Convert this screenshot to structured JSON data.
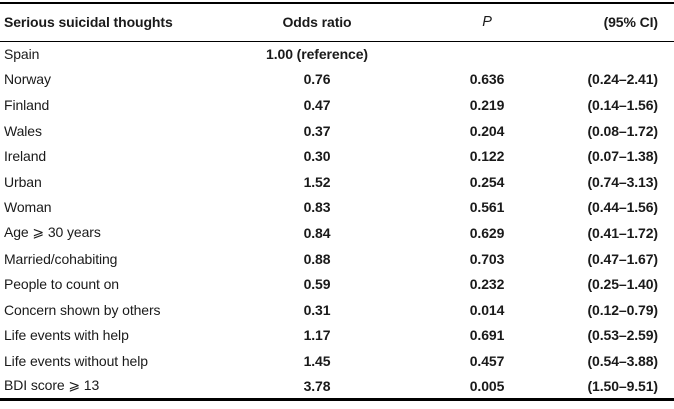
{
  "page": {
    "background_color": "#ffffff",
    "text_color": "#1a1a1a",
    "rule_color": "#000000"
  },
  "table": {
    "columns": [
      {
        "key": "label",
        "header": "Serious suicidal thoughts"
      },
      {
        "key": "odds_ratio",
        "header": "Odds ratio"
      },
      {
        "key": "p",
        "header": "P"
      },
      {
        "key": "ci",
        "header": "(95% CI)"
      }
    ],
    "rows": [
      {
        "label": "Spain",
        "odds_ratio": "1.00 (reference)",
        "p": "",
        "ci": ""
      },
      {
        "label": "Norway",
        "odds_ratio": "0.76",
        "p": "0.636",
        "ci": "(0.24–2.41)"
      },
      {
        "label": "Finland",
        "odds_ratio": "0.47",
        "p": "0.219",
        "ci": "(0.14–1.56)"
      },
      {
        "label": "Wales",
        "odds_ratio": "0.37",
        "p": "0.204",
        "ci": "(0.08–1.72)"
      },
      {
        "label": "Ireland",
        "odds_ratio": "0.30",
        "p": "0.122",
        "ci": "(0.07–1.38)"
      },
      {
        "label": "Urban",
        "odds_ratio": "1.52",
        "p": "0.254",
        "ci": "(0.74–3.13)"
      },
      {
        "label": "Woman",
        "odds_ratio": "0.83",
        "p": "0.561",
        "ci": "(0.44–1.56)"
      },
      {
        "label": "Age ⩾ 30 years",
        "odds_ratio": "0.84",
        "p": "0.629",
        "ci": "(0.41–1.72)"
      },
      {
        "label": "Married/cohabiting",
        "odds_ratio": "0.88",
        "p": "0.703",
        "ci": "(0.47–1.67)"
      },
      {
        "label": "People to count on",
        "odds_ratio": "0.59",
        "p": "0.232",
        "ci": "(0.25–1.40)"
      },
      {
        "label": "Concern shown by others",
        "odds_ratio": "0.31",
        "p": "0.014",
        "ci": "(0.12–0.79)"
      },
      {
        "label": "Life events with help",
        "odds_ratio": "1.17",
        "p": "0.691",
        "ci": "(0.53–2.59)"
      },
      {
        "label": "Life events without help",
        "odds_ratio": "1.45",
        "p": "0.457",
        "ci": "(0.54–3.88)"
      },
      {
        "label": "BDI score ⩾ 13",
        "odds_ratio": "3.78",
        "p": "0.005",
        "ci": "(1.50–9.51)"
      }
    ]
  }
}
